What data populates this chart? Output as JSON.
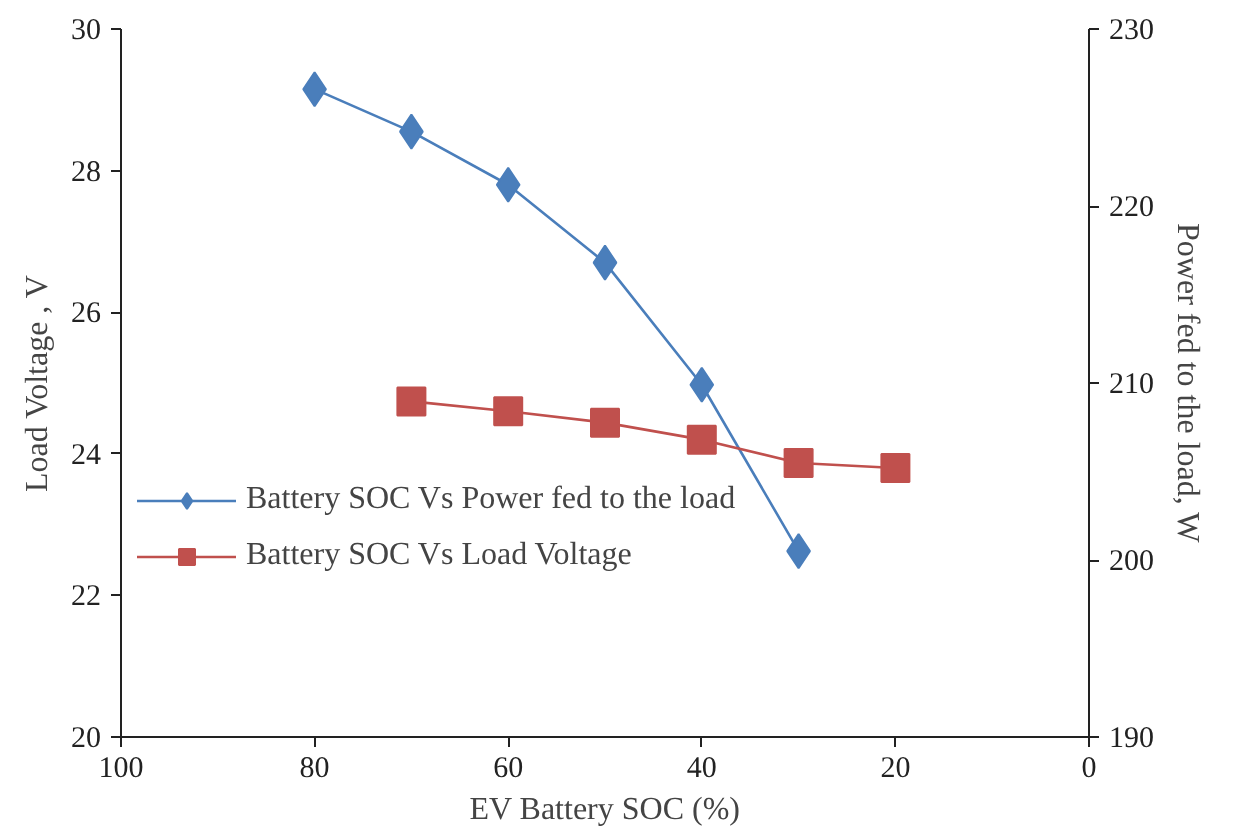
{
  "chart_data": {
    "type": "line",
    "xlabel": "EV Battery SOC (%)",
    "ylabel": "Load Voltage , V",
    "y2label": "Power fed to the load, W",
    "xlim": [
      100,
      0
    ],
    "xticks": [
      100,
      80,
      60,
      40,
      20,
      0
    ],
    "ylim": [
      20,
      30
    ],
    "yticks": [
      20,
      22,
      24,
      26,
      28,
      30
    ],
    "y2lim": [
      190,
      230
    ],
    "y2ticks": [
      190,
      200,
      210,
      220,
      230
    ],
    "grid": false,
    "legend": "left",
    "series": [
      {
        "name": "Battery SOC Vs Power fed to the load",
        "color": "#4a7ebb",
        "axis": "y2",
        "marker": "diamond",
        "x": [
          80,
          70,
          60,
          50,
          40,
          30
        ],
        "values": [
          226.6,
          224.2,
          221.2,
          216.8,
          209.9,
          200.5
        ]
      },
      {
        "name": "Battery SOC Vs Load Voltage",
        "color": "#c0504d",
        "marker": "square",
        "x": [
          70,
          60,
          50,
          40,
          30,
          20
        ],
        "values": [
          24.74,
          24.6,
          24.44,
          24.2,
          23.87,
          23.8
        ]
      }
    ]
  }
}
